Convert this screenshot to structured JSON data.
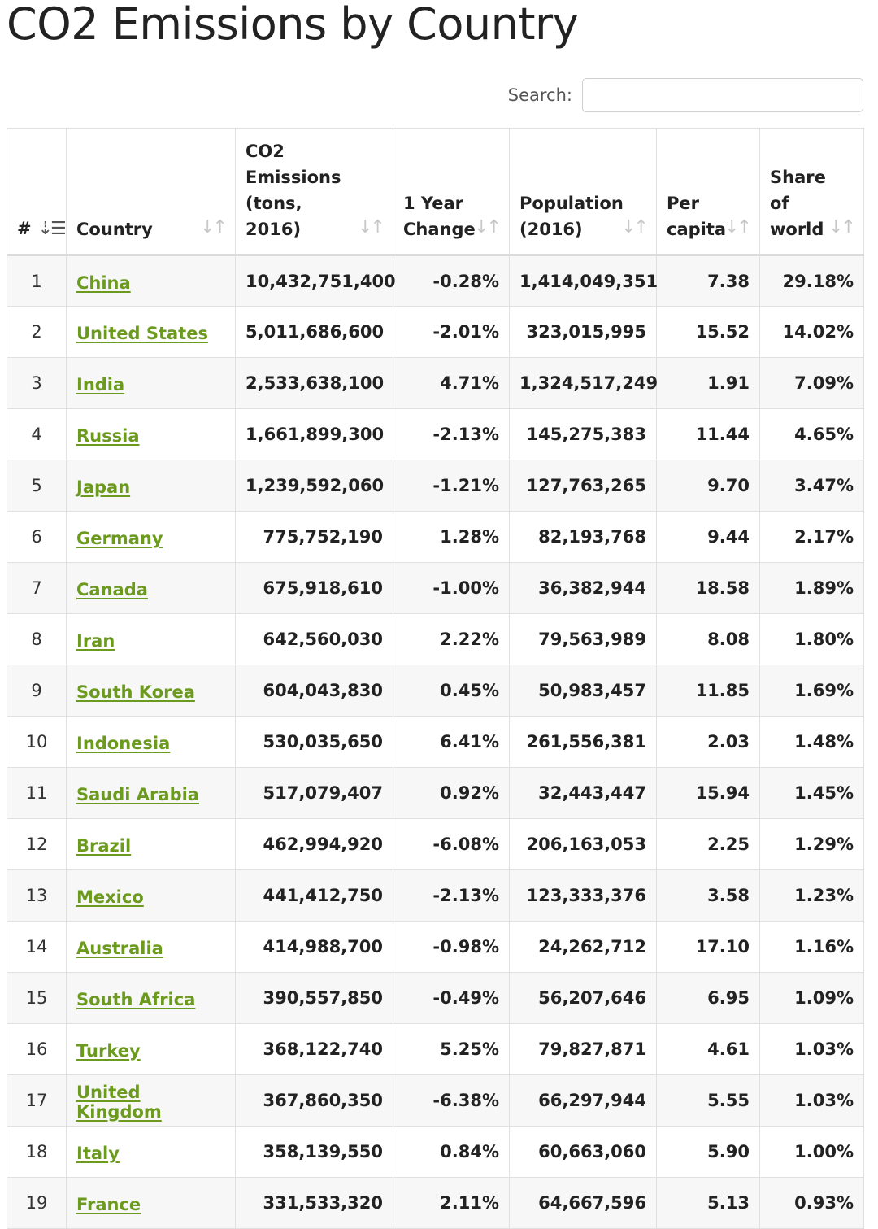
{
  "page": {
    "title": "CO2 Emissions by Country"
  },
  "search": {
    "label": "Search:",
    "value": ""
  },
  "table": {
    "columns": [
      "#",
      "Country",
      "CO2 Emissions (tons, 2016)",
      "1 Year Change",
      "Population (2016)",
      "Per capita",
      "Share of world"
    ],
    "sorted_column": "#",
    "sort_icon": "sort-icon",
    "rows": [
      {
        "rank": "1",
        "country": "China",
        "emissions": "10,432,751,400",
        "change": "-0.28%",
        "population": "1,414,049,351",
        "per_capita": "7.38",
        "share": "29.18%"
      },
      {
        "rank": "2",
        "country": "United States",
        "emissions": "5,011,686,600",
        "change": "-2.01%",
        "population": "323,015,995",
        "per_capita": "15.52",
        "share": "14.02%"
      },
      {
        "rank": "3",
        "country": "India",
        "emissions": "2,533,638,100",
        "change": "4.71%",
        "population": "1,324,517,249",
        "per_capita": "1.91",
        "share": "7.09%"
      },
      {
        "rank": "4",
        "country": "Russia",
        "emissions": "1,661,899,300",
        "change": "-2.13%",
        "population": "145,275,383",
        "per_capita": "11.44",
        "share": "4.65%"
      },
      {
        "rank": "5",
        "country": "Japan",
        "emissions": "1,239,592,060",
        "change": "-1.21%",
        "population": "127,763,265",
        "per_capita": "9.70",
        "share": "3.47%"
      },
      {
        "rank": "6",
        "country": "Germany",
        "emissions": "775,752,190",
        "change": "1.28%",
        "population": "82,193,768",
        "per_capita": "9.44",
        "share": "2.17%"
      },
      {
        "rank": "7",
        "country": "Canada",
        "emissions": "675,918,610",
        "change": "-1.00%",
        "population": "36,382,944",
        "per_capita": "18.58",
        "share": "1.89%"
      },
      {
        "rank": "8",
        "country": "Iran",
        "emissions": "642,560,030",
        "change": "2.22%",
        "population": "79,563,989",
        "per_capita": "8.08",
        "share": "1.80%"
      },
      {
        "rank": "9",
        "country": "South Korea",
        "emissions": "604,043,830",
        "change": "0.45%",
        "population": "50,983,457",
        "per_capita": "11.85",
        "share": "1.69%"
      },
      {
        "rank": "10",
        "country": "Indonesia",
        "emissions": "530,035,650",
        "change": "6.41%",
        "population": "261,556,381",
        "per_capita": "2.03",
        "share": "1.48%"
      },
      {
        "rank": "11",
        "country": "Saudi Arabia",
        "emissions": "517,079,407",
        "change": "0.92%",
        "population": "32,443,447",
        "per_capita": "15.94",
        "share": "1.45%"
      },
      {
        "rank": "12",
        "country": "Brazil",
        "emissions": "462,994,920",
        "change": "-6.08%",
        "population": "206,163,053",
        "per_capita": "2.25",
        "share": "1.29%"
      },
      {
        "rank": "13",
        "country": "Mexico",
        "emissions": "441,412,750",
        "change": "-2.13%",
        "population": "123,333,376",
        "per_capita": "3.58",
        "share": "1.23%"
      },
      {
        "rank": "14",
        "country": "Australia",
        "emissions": "414,988,700",
        "change": "-0.98%",
        "population": "24,262,712",
        "per_capita": "17.10",
        "share": "1.16%"
      },
      {
        "rank": "15",
        "country": "South Africa",
        "emissions": "390,557,850",
        "change": "-0.49%",
        "population": "56,207,646",
        "per_capita": "6.95",
        "share": "1.09%"
      },
      {
        "rank": "16",
        "country": "Turkey",
        "emissions": "368,122,740",
        "change": "5.25%",
        "population": "79,827,871",
        "per_capita": "4.61",
        "share": "1.03%"
      },
      {
        "rank": "17",
        "country": "United Kingdom",
        "emissions": "367,860,350",
        "change": "-6.38%",
        "population": "66,297,944",
        "per_capita": "5.55",
        "share": "1.03%"
      },
      {
        "rank": "18",
        "country": "Italy",
        "emissions": "358,139,550",
        "change": "0.84%",
        "population": "60,663,060",
        "per_capita": "5.90",
        "share": "1.00%"
      },
      {
        "rank": "19",
        "country": "France",
        "emissions": "331,533,320",
        "change": "2.11%",
        "population": "64,667,596",
        "per_capita": "5.13",
        "share": "0.93%"
      }
    ]
  },
  "colors": {
    "link": "#6b9a1f",
    "row_alt": "#f7f7f7",
    "border": "#e0e0e0"
  }
}
